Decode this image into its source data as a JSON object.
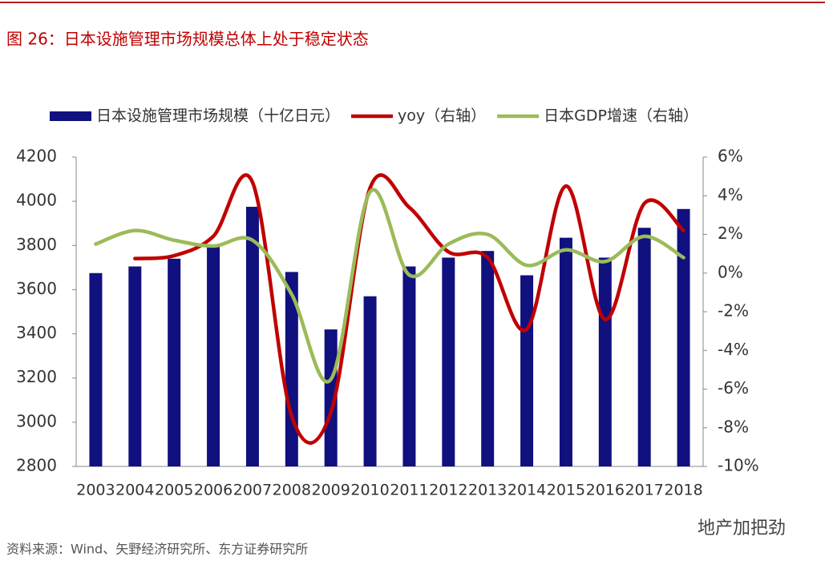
{
  "chart_data": {
    "type": "bar-line",
    "title": "图 26：日本设施管理市场规模总体上处于稳定状态",
    "source": "资料来源：Wind、矢野经济研究所、东方证券研究所",
    "watermark": "地产加把劲",
    "categories": [
      "2003",
      "2004",
      "2005",
      "2006",
      "2007",
      "2008",
      "2009",
      "2010",
      "2011",
      "2012",
      "2013",
      "2014",
      "2015",
      "2016",
      "2017",
      "2018"
    ],
    "series": [
      {
        "name": "日本设施管理市场规模（十亿日元）",
        "type": "bar",
        "color": "#10107f",
        "values": [
          3675,
          3705,
          3740,
          3800,
          3975,
          3680,
          3420,
          3570,
          3705,
          3745,
          3775,
          3665,
          3835,
          3745,
          3880,
          3965
        ]
      },
      {
        "name": "yoy（右轴）",
        "type": "line",
        "axis": "y2",
        "color": "#c00000",
        "values": [
          null,
          0.75,
          0.9,
          1.9,
          4.7,
          -7.4,
          -7.2,
          4.4,
          3.4,
          1.1,
          0.8,
          -2.9,
          4.5,
          -2.4,
          3.6,
          2.2
        ]
      },
      {
        "name": "日本GDP增速（右轴）",
        "type": "line",
        "axis": "y2",
        "color": "#9bbb59",
        "values": [
          1.5,
          2.2,
          1.7,
          1.4,
          1.7,
          -1.1,
          -5.5,
          4.2,
          -0.1,
          1.5,
          2.0,
          0.4,
          1.2,
          0.6,
          1.9,
          0.8
        ]
      }
    ],
    "ylim": [
      2800,
      4200
    ],
    "yticks": [
      2800,
      3000,
      3200,
      3400,
      3600,
      3800,
      4000,
      4200
    ],
    "y2lim": [
      -10,
      6
    ],
    "y2ticks": [
      {
        "value": -10,
        "label": "-10%"
      },
      {
        "value": -8,
        "label": "-8%"
      },
      {
        "value": -6,
        "label": "-6%"
      },
      {
        "value": -4,
        "label": "-4%"
      },
      {
        "value": -2,
        "label": "-2%"
      },
      {
        "value": 0,
        "label": "0%"
      },
      {
        "value": 2,
        "label": "2%"
      },
      {
        "value": 4,
        "label": "4%"
      },
      {
        "value": 6,
        "label": "6%"
      }
    ]
  }
}
